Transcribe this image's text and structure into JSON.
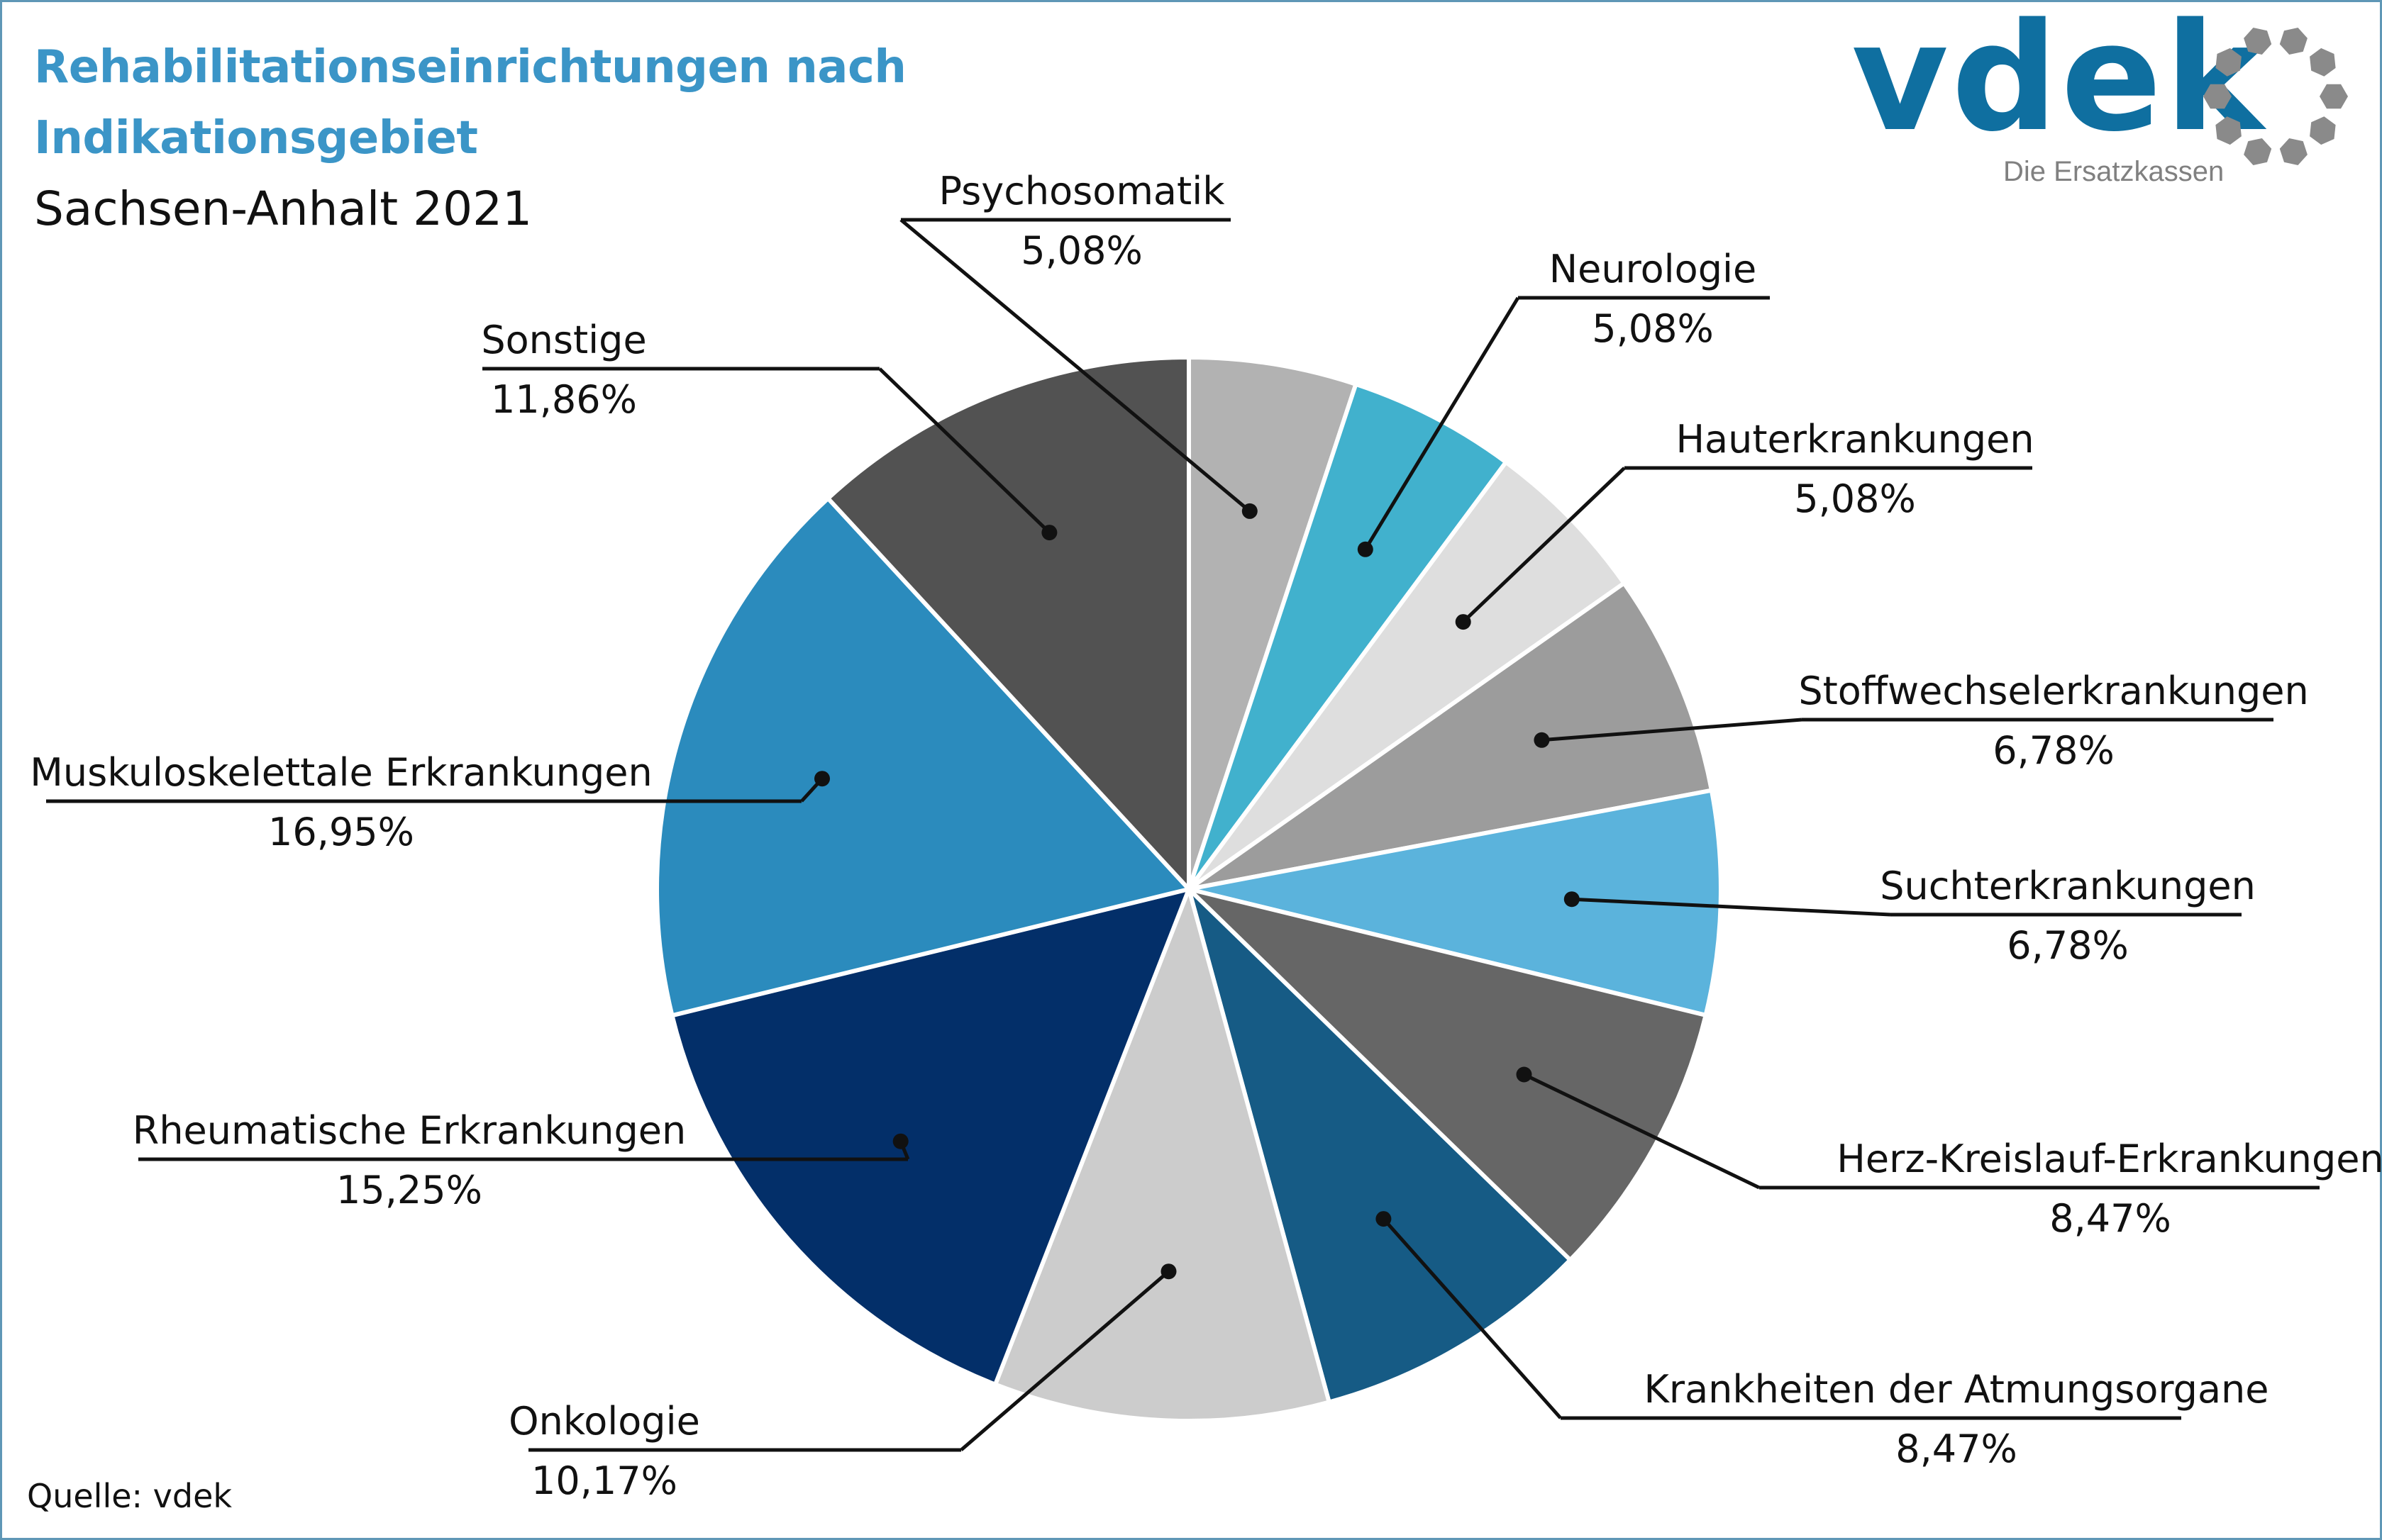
{
  "header": {
    "title_line1": "Rehabilitationseinrichtungen nach",
    "title_line2": "Indikationsgebiet",
    "subtitle": "Sachsen-Anhalt 2021"
  },
  "logo": {
    "wordmark": "vdek",
    "tagline": "Die Ersatzkassen"
  },
  "footer": {
    "source": "Quelle: vdek"
  },
  "colors": {
    "title": "#3b95c7",
    "frame": "#5f97b6",
    "logo_blue": "#0f6fa0",
    "logo_grey": "#8a8a8a"
  },
  "chart_data": {
    "type": "pie",
    "start": "12 o'clock",
    "direction": "clockwise",
    "slices": [
      {
        "label": "Psychosomatik",
        "value": 5.08,
        "display": "5,08%",
        "color": "#b2b2b2"
      },
      {
        "label": "Neurologie",
        "value": 5.08,
        "display": "5,08%",
        "color": "#41b1cd"
      },
      {
        "label": "Hauterkrankungen",
        "value": 5.08,
        "display": "5,08%",
        "color": "#dedede"
      },
      {
        "label": "Stoffwechselerkrankungen",
        "value": 6.78,
        "display": "6,78%",
        "color": "#9c9c9c"
      },
      {
        "label": "Suchterkrankungen",
        "value": 6.78,
        "display": "6,78%",
        "color": "#5bb3dc"
      },
      {
        "label": "Herz-Kreislauf-Erkrankungen",
        "value": 8.47,
        "display": "8,47%",
        "color": "#666666"
      },
      {
        "label": "Krankheiten der Atmungsorgane",
        "value": 8.47,
        "display": "8,47%",
        "color": "#165b85"
      },
      {
        "label": "Onkologie",
        "value": 10.17,
        "display": "10,17%",
        "color": "#cccccc"
      },
      {
        "label": "Rheumatische Erkrankungen",
        "value": 15.25,
        "display": "15,25%",
        "color": "#032f69"
      },
      {
        "label": "Muskuloskelettale Erkrankungen",
        "value": 16.95,
        "display": "16,95%",
        "color": "#2b8bbd"
      },
      {
        "label": "Sonstige",
        "value": 11.86,
        "display": "11,86%",
        "color": "#525252"
      }
    ]
  }
}
